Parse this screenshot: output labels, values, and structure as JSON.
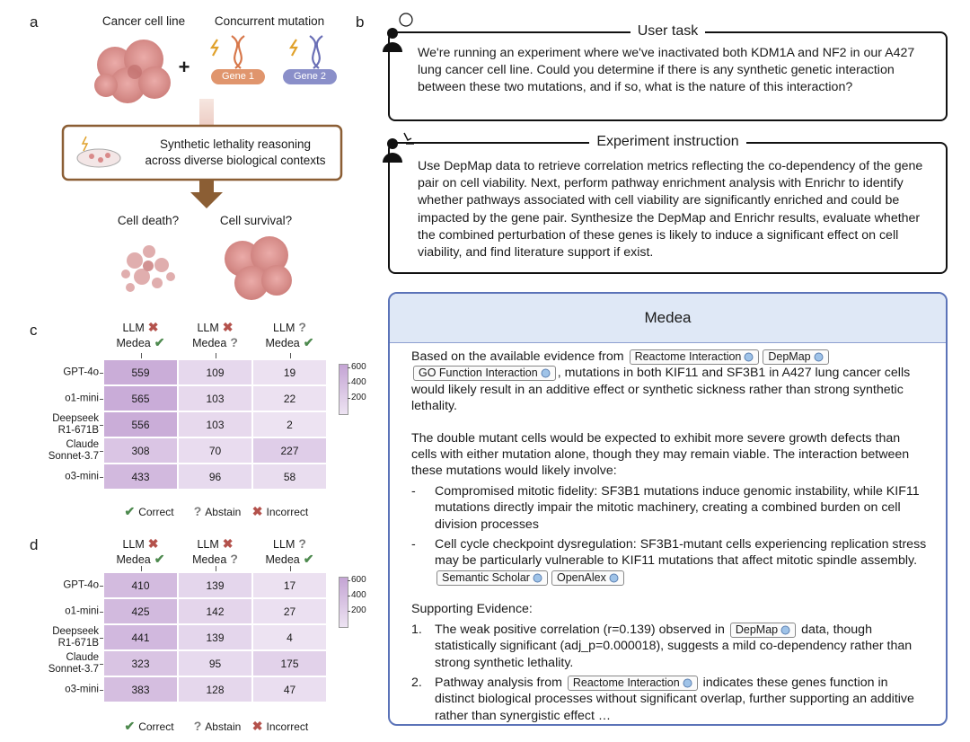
{
  "panel_a": {
    "label": "a",
    "cancer_cell_line": "Cancer cell line",
    "plus": "+",
    "concurrent_mutation": "Concurrent mutation",
    "gene1": "Gene 1",
    "gene2": "Gene 2",
    "reasoning": [
      "Synthetic lethality reasoning",
      "across diverse biological contexts"
    ],
    "cell_death": "Cell death?",
    "cell_survival": "Cell survival?"
  },
  "panel_b": {
    "label": "b",
    "user_task": {
      "title": "User task",
      "text": "We're running an experiment where we've inactivated both KDM1A and NF2 in our A427 lung cancer cell line. Could you determine if there is any synthetic genetic interaction between these two mutations, and if so, what is the nature of this interaction?"
    },
    "experiment_instruction": {
      "title": "Experiment instruction",
      "text": "Use DepMap data to retrieve correlation metrics reflecting the co-dependency of the gene pair on cell viability. Next, perform pathway enrichment analysis with Enrichr to identify whether pathways associated with cell viability are significantly enriched and could be impacted by the gene pair. Synthesize the DepMap and Enrichr results, evaluate whether the combined perturbation of these genes is likely to induce a significant effect on cell viability, and find literature support if exist."
    }
  },
  "medea": {
    "title": "Medea",
    "blocks": [
      {
        "segments": [
          "Based on the available evidence from ",
          {
            "badge": "Reactome Interaction"
          },
          {
            "badge": "DepMap"
          },
          {
            "badge": "GO Function Interaction"
          },
          ", mutations in both KIF11 and SF3B1 in A427 lung cancer cells would likely result in an additive effect or synthetic sickness rather than strong synthetic lethality."
        ]
      },
      {
        "segments": [
          "The double mutant cells would be expected to exhibit more severe growth defects than cells with either mutation alone, though they may remain viable. The interaction between these mutations would likely involve:"
        ]
      },
      {
        "marker": "-",
        "segments": [
          "Compromised mitotic fidelity: SF3B1 mutations induce genomic instability, while KIF11 mutations directly impair the mitotic machinery, creating a combined burden on cell division processes"
        ]
      },
      {
        "marker": "-",
        "segments": [
          "Cell cycle checkpoint dysregulation: SF3B1-mutant cells experiencing replication stress may be particularly vulnerable to KIF11 mutations that affect mitotic spindle assembly. ",
          {
            "badge": "Semantic Scholar"
          },
          {
            "badge": "OpenAlex"
          }
        ]
      },
      {
        "segments": [
          "Supporting Evidence:"
        ]
      },
      {
        "marker": "1.",
        "segments": [
          "The weak positive correlation (r=0.139) observed in ",
          {
            "badge": "DepMap"
          },
          " data, though statistically significant (adj_p=0.000018), suggests a mild co-dependency rather than strong synthetic lethality."
        ]
      },
      {
        "marker": "2.",
        "segments": [
          "Pathway analysis from ",
          {
            "badge": "Reactome Interaction"
          },
          " indicates these genes function in distinct biological processes without significant overlap, further supporting an additive rather than synergistic effect …"
        ]
      }
    ]
  },
  "chart_data": [
    {
      "type": "heatmap",
      "label": "c",
      "columns": [
        {
          "llm": "LLM",
          "llm_symbol": "✖",
          "medea": "Medea",
          "medea_symbol": "✔"
        },
        {
          "llm": "LLM",
          "llm_symbol": "✖",
          "medea": "Medea",
          "medea_symbol": "?"
        },
        {
          "llm": "LLM",
          "llm_symbol": "?",
          "medea": "Medea",
          "medea_symbol": "✔"
        }
      ],
      "rows": [
        "GPT-4o",
        "o1-mini",
        "Deepseek\nR1-671B",
        "Claude\nSonnet-3.7",
        "o3-mini"
      ],
      "values": [
        [
          559,
          109,
          19
        ],
        [
          565,
          103,
          22
        ],
        [
          556,
          103,
          2
        ],
        [
          308,
          70,
          227
        ],
        [
          433,
          96,
          58
        ]
      ],
      "clim": [
        0,
        650
      ],
      "cticks": [
        200,
        400,
        600
      ],
      "legend": [
        {
          "symbol": "✔",
          "label": "Correct",
          "color": "#4e8a4f"
        },
        {
          "symbol": "?",
          "label": "Abstain",
          "color": "#7a7a7a"
        },
        {
          "symbol": "✖",
          "label": "Incorrect",
          "color": "#b4524c"
        }
      ]
    },
    {
      "type": "heatmap",
      "label": "d",
      "columns": [
        {
          "llm": "LLM",
          "llm_symbol": "✖",
          "medea": "Medea",
          "medea_symbol": "✔"
        },
        {
          "llm": "LLM",
          "llm_symbol": "✖",
          "medea": "Medea",
          "medea_symbol": "?"
        },
        {
          "llm": "LLM",
          "llm_symbol": "?",
          "medea": "Medea",
          "medea_symbol": "✔"
        }
      ],
      "rows": [
        "GPT-4o",
        "o1-mini",
        "Deepseek\nR1-671B",
        "Claude\nSonnet-3.7",
        "o3-mini"
      ],
      "values": [
        [
          410,
          139,
          17
        ],
        [
          425,
          142,
          27
        ],
        [
          441,
          139,
          4
        ],
        [
          323,
          95,
          175
        ],
        [
          383,
          128,
          47
        ]
      ],
      "clim": [
        0,
        650
      ],
      "cticks": [
        200,
        400,
        600
      ],
      "legend": [
        {
          "symbol": "✔",
          "label": "Correct",
          "color": "#4e8a4f"
        },
        {
          "symbol": "?",
          "label": "Abstain",
          "color": "#7a7a7a"
        },
        {
          "symbol": "✖",
          "label": "Incorrect",
          "color": "#b4524c"
        }
      ]
    }
  ]
}
